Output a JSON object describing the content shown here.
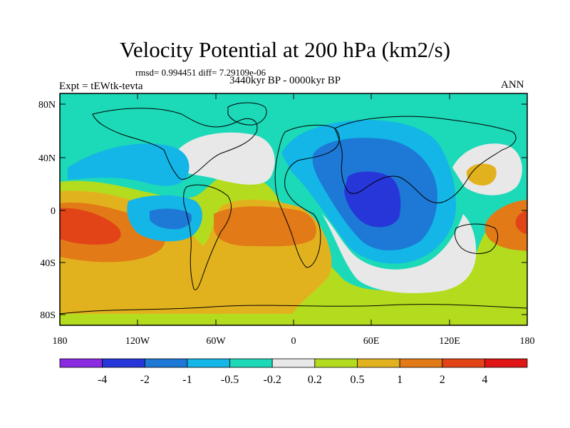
{
  "title": "Velocity Potential at 200 hPa (km2/s)",
  "stats_line": "rmsd= 0.994451  diff= 7.29109e-06",
  "left_label": "Expt = tEWtk-tevta",
  "center_label": "3440kyr BP - 0000kyr BP",
  "right_label": "ANN",
  "lat_labels": [
    "80N",
    "40N",
    "0",
    "40S",
    "80S"
  ],
  "lon_labels": [
    "180",
    "120W",
    "60W",
    "0",
    "60E",
    "120E",
    "180"
  ],
  "colorbar": {
    "colors": [
      "#8A2BE2",
      "#2636D9",
      "#1E78D6",
      "#13B6E6",
      "#1CD9B8",
      "#E8E8E8",
      "#B4DC1E",
      "#E2B21E",
      "#E27A17",
      "#E24417",
      "#E01515"
    ],
    "labels": [
      "-4",
      "-2",
      "-1",
      "-0.5",
      "-0.2",
      "0.2",
      "0.5",
      "1",
      "2",
      "4"
    ]
  },
  "field_colors": {
    "background": "#1CD9B8",
    "neg_0_5": "#13B6E6",
    "neg_1": "#1E78D6",
    "neg_2": "#2636D9",
    "near_zero": "#E8E8E8",
    "pos_0_2": "#B4DC1E",
    "pos_0_5": "#E2B21E",
    "pos_1": "#E27A17",
    "pos_2": "#E24417"
  }
}
